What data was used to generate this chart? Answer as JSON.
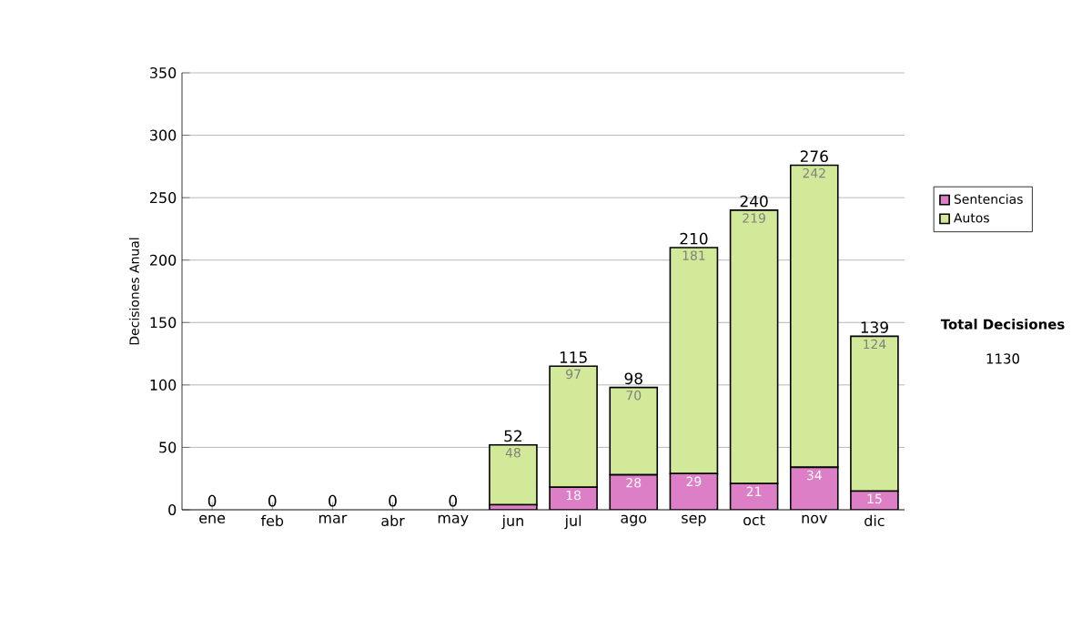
{
  "chart_data": {
    "type": "bar",
    "stacked": true,
    "ylabel": "Decisiones Anual",
    "categories": [
      "ene",
      "feb",
      "mar",
      "abr",
      "may",
      "jun",
      "jul",
      "ago",
      "sep",
      "oct",
      "nov",
      "dic"
    ],
    "series": [
      {
        "name": "Sentencias",
        "color": "#dd7fc6",
        "values": [
          0,
          0,
          0,
          0,
          0,
          4,
          18,
          28,
          29,
          21,
          34,
          15
        ],
        "value_labels": [
          null,
          null,
          null,
          null,
          null,
          null,
          "18",
          "28",
          "29",
          "21",
          "34",
          "15"
        ]
      },
      {
        "name": "Autos",
        "color": "#d3e99a",
        "values": [
          0,
          0,
          0,
          0,
          0,
          48,
          97,
          70,
          181,
          219,
          242,
          124
        ],
        "value_labels": [
          null,
          null,
          null,
          null,
          null,
          "48",
          "97",
          "70",
          "181",
          "219",
          "242",
          "124"
        ]
      }
    ],
    "totals": [
      "0",
      "0",
      "0",
      "0",
      "0",
      "52",
      "115",
      "98",
      "210",
      "240",
      "276",
      "139"
    ],
    "ylim": [
      0,
      350
    ],
    "yticks": [
      0,
      50,
      100,
      150,
      200,
      250,
      300,
      350
    ],
    "grid": "y",
    "legend": "right",
    "annotations": [
      "**Total Decisiones**",
      "1130"
    ]
  }
}
